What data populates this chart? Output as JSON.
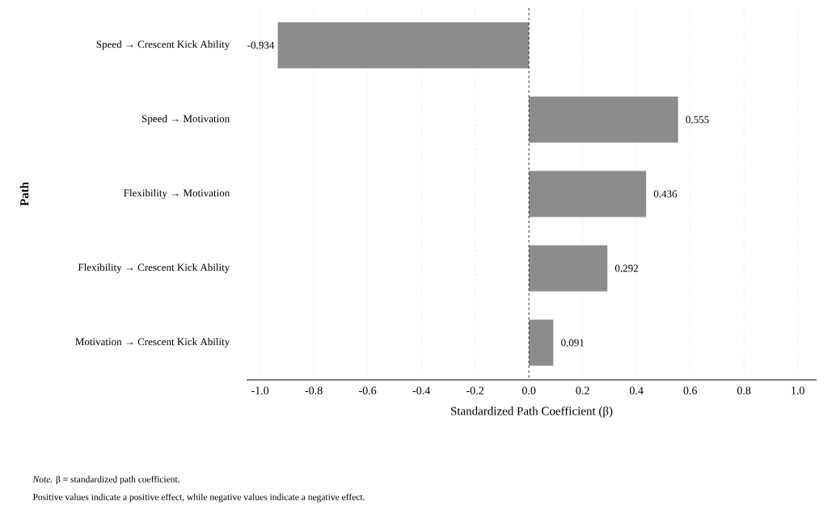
{
  "chart_data": {
    "type": "bar",
    "orientation": "horizontal",
    "categories": [
      "Speed → Crescent Kick Ability",
      "Speed → Motivation",
      "Flexibility → Motivation",
      "Flexibility → Crescent Kick Ability",
      "Motivation → Crescent Kick Ability"
    ],
    "values": [
      -0.934,
      0.555,
      0.436,
      0.292,
      0.091
    ],
    "color": "#8c8c8c",
    "data_labels": true,
    "xlabel": "Standardized Path Coefficient (β)",
    "ylabel": "Path",
    "xlim": [
      -1.05,
      1.07
    ],
    "xticks": [
      {
        "value": -1.0,
        "label": "-1.0"
      },
      {
        "value": -0.8,
        "label": "-0.8"
      },
      {
        "value": -0.6,
        "label": "-0.6"
      },
      {
        "value": -0.4,
        "label": "-0.4"
      },
      {
        "value": -0.2,
        "label": "-0.2"
      },
      {
        "value": 0.0,
        "label": "0.0"
      },
      {
        "value": 0.2,
        "label": "0.2"
      },
      {
        "value": 0.4,
        "label": "0.4"
      },
      {
        "value": 0.6,
        "label": "0.6"
      },
      {
        "value": 0.8,
        "label": "0.8"
      },
      {
        "value": 1.0,
        "label": "1.0"
      }
    ],
    "grid": "x",
    "ref_lines": [
      {
        "axis": "x",
        "value": 0,
        "color": "#000000",
        "line_style": "dashed"
      }
    ],
    "annotations": [
      "*Note.* β = standardized path coefficient.",
      "Positive values indicate a positive effect, while negative values indicate a negative effect."
    ]
  }
}
